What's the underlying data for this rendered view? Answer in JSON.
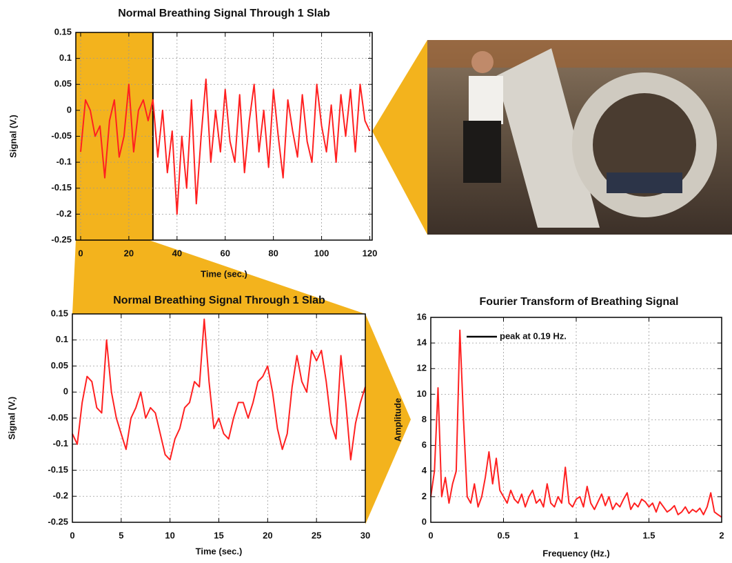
{
  "chart_data": [
    {
      "type": "line",
      "title": "Normal Breathing Signal Through 1 Slab",
      "x_label": "Time (sec.)",
      "y_label": "Signal (V.)",
      "xlim": [
        -2,
        121
      ],
      "xticks": [
        0,
        20,
        40,
        60,
        80,
        100,
        120
      ],
      "ylim": [
        -0.25,
        0.15
      ],
      "yticks": [
        -0.25,
        -0.2,
        -0.15,
        -0.1,
        -0.05,
        0,
        0.05,
        0.1,
        0.15
      ],
      "grid": true,
      "x": [
        0,
        2,
        4,
        6,
        8,
        10,
        12,
        14,
        16,
        18,
        20,
        22,
        24,
        26,
        28,
        30,
        32,
        34,
        36,
        38,
        40,
        42,
        44,
        46,
        48,
        50,
        52,
        54,
        56,
        58,
        60,
        62,
        64,
        66,
        68,
        70,
        72,
        74,
        76,
        78,
        80,
        82,
        84,
        86,
        88,
        90,
        92,
        94,
        96,
        98,
        100,
        102,
        104,
        106,
        108,
        110,
        112,
        114,
        116,
        118,
        120
      ],
      "series": [
        {
          "color": "#ff2020",
          "values": [
            -0.08,
            0.02,
            0.0,
            -0.05,
            -0.03,
            -0.13,
            -0.02,
            0.02,
            -0.09,
            -0.05,
            0.05,
            -0.08,
            0.0,
            0.02,
            -0.02,
            0.02,
            -0.09,
            0.0,
            -0.12,
            -0.04,
            -0.2,
            -0.05,
            -0.15,
            0.02,
            -0.18,
            -0.05,
            0.06,
            -0.1,
            0.0,
            -0.08,
            0.04,
            -0.06,
            -0.1,
            0.03,
            -0.12,
            -0.02,
            0.05,
            -0.08,
            0.0,
            -0.11,
            0.04,
            -0.05,
            -0.13,
            0.02,
            -0.04,
            -0.09,
            0.03,
            -0.06,
            -0.1,
            0.05,
            -0.03,
            -0.08,
            0.01,
            -0.1,
            0.03,
            -0.05,
            0.04,
            -0.08,
            0.05,
            -0.02,
            -0.04
          ]
        }
      ]
    },
    {
      "type": "line",
      "title": "Normal Breathing Signal Through 1 Slab",
      "x_label": "Time (sec.)",
      "y_label": "Signal (V.)",
      "xlim": [
        0,
        30
      ],
      "xticks": [
        0,
        5,
        10,
        15,
        20,
        25,
        30
      ],
      "ylim": [
        -0.25,
        0.15
      ],
      "yticks": [
        -0.25,
        -0.2,
        -0.15,
        -0.1,
        -0.05,
        0,
        0.05,
        0.1,
        0.15
      ],
      "grid": true,
      "x": [
        0,
        0.5,
        1,
        1.5,
        2,
        2.5,
        3,
        3.5,
        4,
        4.5,
        5,
        5.5,
        6,
        6.5,
        7,
        7.5,
        8,
        8.5,
        9,
        9.5,
        10,
        10.5,
        11,
        11.5,
        12,
        12.5,
        13,
        13.5,
        14,
        14.5,
        15,
        15.5,
        16,
        16.5,
        17,
        17.5,
        18,
        18.5,
        19,
        19.5,
        20,
        20.5,
        21,
        21.5,
        22,
        22.5,
        23,
        23.5,
        24,
        24.5,
        25,
        25.5,
        26,
        26.5,
        27,
        27.5,
        28,
        28.5,
        29,
        29.5,
        30
      ],
      "series": [
        {
          "color": "#ff2020",
          "values": [
            -0.08,
            -0.1,
            -0.02,
            0.03,
            0.02,
            -0.03,
            -0.04,
            0.1,
            0.0,
            -0.05,
            -0.08,
            -0.11,
            -0.05,
            -0.03,
            0.0,
            -0.05,
            -0.03,
            -0.04,
            -0.08,
            -0.12,
            -0.13,
            -0.09,
            -0.07,
            -0.03,
            -0.02,
            0.02,
            0.01,
            0.14,
            0.02,
            -0.07,
            -0.05,
            -0.08,
            -0.09,
            -0.05,
            -0.02,
            -0.02,
            -0.05,
            -0.02,
            0.02,
            0.03,
            0.05,
            0.0,
            -0.07,
            -0.11,
            -0.08,
            0.01,
            0.07,
            0.02,
            0.0,
            0.08,
            0.06,
            0.08,
            0.02,
            -0.06,
            -0.09,
            0.07,
            -0.02,
            -0.13,
            -0.06,
            -0.02,
            0.01
          ]
        }
      ]
    },
    {
      "type": "line",
      "title": "Fourier Transform of Breathing Signal",
      "x_label": "Frequency (Hz.)",
      "y_label": "Amplitude",
      "xlim": [
        0,
        2
      ],
      "xticks": [
        0,
        0.5,
        1,
        1.5,
        2
      ],
      "ylim": [
        0,
        16
      ],
      "yticks": [
        0,
        2,
        4,
        6,
        8,
        10,
        12,
        14,
        16
      ],
      "grid": true,
      "legend_line_color": "#000000",
      "x": [
        0,
        0.025,
        0.05,
        0.075,
        0.1,
        0.125,
        0.15,
        0.175,
        0.2,
        0.225,
        0.25,
        0.275,
        0.3,
        0.325,
        0.35,
        0.375,
        0.4,
        0.425,
        0.45,
        0.475,
        0.5,
        0.525,
        0.55,
        0.575,
        0.6,
        0.625,
        0.65,
        0.675,
        0.7,
        0.725,
        0.75,
        0.775,
        0.8,
        0.825,
        0.85,
        0.875,
        0.9,
        0.925,
        0.95,
        0.975,
        1,
        1.025,
        1.05,
        1.075,
        1.1,
        1.125,
        1.15,
        1.175,
        1.2,
        1.225,
        1.25,
        1.275,
        1.3,
        1.325,
        1.35,
        1.375,
        1.4,
        1.425,
        1.45,
        1.475,
        1.5,
        1.525,
        1.55,
        1.575,
        1.6,
        1.625,
        1.65,
        1.675,
        1.7,
        1.725,
        1.75,
        1.775,
        1.8,
        1.825,
        1.85,
        1.875,
        1.9,
        1.925,
        1.95,
        1.975,
        2
      ],
      "series": [
        {
          "name": "peak at 0.19 Hz.",
          "color": "#ff2020",
          "values": [
            2,
            4,
            10.5,
            2,
            3.5,
            1.5,
            3,
            4,
            15,
            8,
            2,
            1.5,
            3,
            1.2,
            2,
            3.5,
            5.5,
            3,
            5,
            2.5,
            2,
            1.5,
            2.5,
            1.8,
            1.5,
            2.2,
            1.2,
            2,
            2.5,
            1.5,
            1.8,
            1.2,
            3,
            1.5,
            1.2,
            2,
            1.5,
            4.3,
            1.5,
            1.2,
            1.8,
            2,
            1.2,
            2.8,
            1.5,
            1,
            1.6,
            2.2,
            1.3,
            2,
            1,
            1.5,
            1.2,
            1.8,
            2.3,
            1,
            1.5,
            1.2,
            1.8,
            1.6,
            1.2,
            1.5,
            0.8,
            1.6,
            1.2,
            0.8,
            1,
            1.3,
            0.6,
            0.8,
            1.2,
            0.7,
            1,
            0.8,
            1.1,
            0.6,
            1.2,
            2.3,
            0.8,
            0.6,
            0.4
          ]
        }
      ]
    }
  ]
}
